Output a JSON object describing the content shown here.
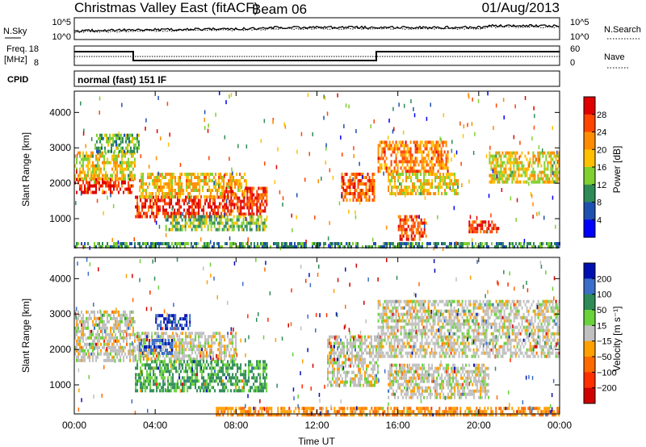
{
  "header": {
    "title": "Christmas Valley East (fitACF)",
    "beam": "Beam 06",
    "date": "01/Aug/2013"
  },
  "top_panels": {
    "nsky_label": "N.Sky",
    "nsearch_label": "N.Search",
    "nsky_ticks": [
      "10^5",
      "10^0"
    ],
    "nsearch_ticks": [
      "10^5",
      "10^0"
    ],
    "freq_label_1": "Freq.",
    "freq_label_2": "[MHz]",
    "freq_ticks": [
      "18",
      "8"
    ],
    "nave_label": "Nave",
    "nave_ticks": [
      "60",
      "0"
    ],
    "cpid_label": "CPID",
    "cpid_text": "normal (fast) 151 IF"
  },
  "chart_data": [
    {
      "type": "heatmap",
      "name": "power",
      "xlabel": "",
      "ylabel": "Slant Range [km]",
      "x_ticks": [
        "00:00",
        "04:00",
        "08:00",
        "12:00",
        "16:00",
        "20:00",
        "00:00"
      ],
      "y_ticks": [
        "4000",
        "3000",
        "2000",
        "1000"
      ],
      "xlim": [
        0,
        24
      ],
      "ylim": [
        180,
        4600
      ],
      "colorbar_label": "Power [dB]",
      "colorbar_ticks": [
        "28",
        "24",
        "20",
        "16",
        "12",
        "8",
        "4"
      ],
      "colorbar_colors": [
        "#e00000",
        "#ff4500",
        "#ff8c00",
        "#ffc000",
        "#7fd030",
        "#2e8b57",
        "#1e50b0",
        "#0000ff"
      ],
      "regions": [
        {
          "t0": 0.0,
          "t1": 2.9,
          "r0": 1750,
          "r1": 2150,
          "level": 0.95
        },
        {
          "t0": 0.0,
          "t1": 3.0,
          "r0": 2150,
          "r1": 2900,
          "level": 0.55
        },
        {
          "t0": 1.0,
          "t1": 3.2,
          "r0": 2900,
          "r1": 3400,
          "level": 0.35
        },
        {
          "t0": 3.0,
          "t1": 7.4,
          "r0": 1050,
          "r1": 1650,
          "level": 0.95
        },
        {
          "t0": 3.2,
          "t1": 8.5,
          "r0": 1650,
          "r1": 2300,
          "level": 0.6
        },
        {
          "t0": 7.4,
          "t1": 9.5,
          "r0": 1100,
          "r1": 1900,
          "level": 0.9
        },
        {
          "t0": 4.5,
          "t1": 9.5,
          "r0": 700,
          "r1": 1100,
          "level": 0.4
        },
        {
          "t0": 13.2,
          "t1": 14.8,
          "r0": 1500,
          "r1": 2300,
          "level": 0.8
        },
        {
          "t0": 15.0,
          "t1": 18.5,
          "r0": 2300,
          "r1": 3200,
          "level": 0.75
        },
        {
          "t0": 15.5,
          "t1": 19.0,
          "r0": 1700,
          "r1": 2300,
          "level": 0.55
        },
        {
          "t0": 16.0,
          "t1": 17.4,
          "r0": 450,
          "r1": 1100,
          "level": 0.85
        },
        {
          "t0": 19.5,
          "t1": 21.0,
          "r0": 650,
          "r1": 950,
          "level": 0.9
        },
        {
          "t0": 20.5,
          "t1": 24.0,
          "r0": 2000,
          "r1": 2900,
          "level": 0.55
        },
        {
          "t0": 0.0,
          "t1": 24.0,
          "r0": 180,
          "r1": 340,
          "level": 0.3
        }
      ]
    },
    {
      "type": "heatmap",
      "name": "velocity",
      "xlabel": "Time UT",
      "ylabel": "Slant Range [km]",
      "x_ticks": [
        "00:00",
        "04:00",
        "08:00",
        "12:00",
        "16:00",
        "20:00",
        "00:00"
      ],
      "y_ticks": [
        "4000",
        "3000",
        "2000",
        "1000"
      ],
      "xlim": [
        0,
        24
      ],
      "ylim": [
        180,
        4600
      ],
      "colorbar_label": "Velocity [m s⁻¹]",
      "colorbar_ticks": [
        "200",
        "100",
        "50",
        "15",
        "−15",
        "−50",
        "−100",
        "−200"
      ],
      "colorbar_colors": [
        "#0010b0",
        "#3a6ec8",
        "#2e8b57",
        "#6ad23a",
        "#c0c0c0",
        "#ffa000",
        "#ff6a00",
        "#ff3000",
        "#d00000"
      ],
      "regions": [
        {
          "t0": 0.0,
          "t1": 3.0,
          "r0": 1700,
          "r1": 3100,
          "level": 0.5
        },
        {
          "t0": 3.0,
          "t1": 8.0,
          "r0": 1700,
          "r1": 2500,
          "level": 0.5
        },
        {
          "t0": 3.0,
          "t1": 9.5,
          "r0": 850,
          "r1": 1700,
          "level": 0.3
        },
        {
          "t0": 3.2,
          "t1": 4.8,
          "r0": 1900,
          "r1": 2300,
          "level": 0.1
        },
        {
          "t0": 4.0,
          "t1": 5.8,
          "r0": 2600,
          "r1": 3000,
          "level": 0.05
        },
        {
          "t0": 12.5,
          "t1": 15.0,
          "r0": 1000,
          "r1": 2400,
          "level": 0.5
        },
        {
          "t0": 15.0,
          "t1": 24.0,
          "r0": 1800,
          "r1": 3400,
          "level": 0.5
        },
        {
          "t0": 15.5,
          "t1": 20.5,
          "r0": 600,
          "r1": 1600,
          "level": 0.5
        },
        {
          "t0": 7.0,
          "t1": 24.0,
          "r0": 180,
          "r1": 380,
          "level": 0.68
        }
      ]
    }
  ]
}
